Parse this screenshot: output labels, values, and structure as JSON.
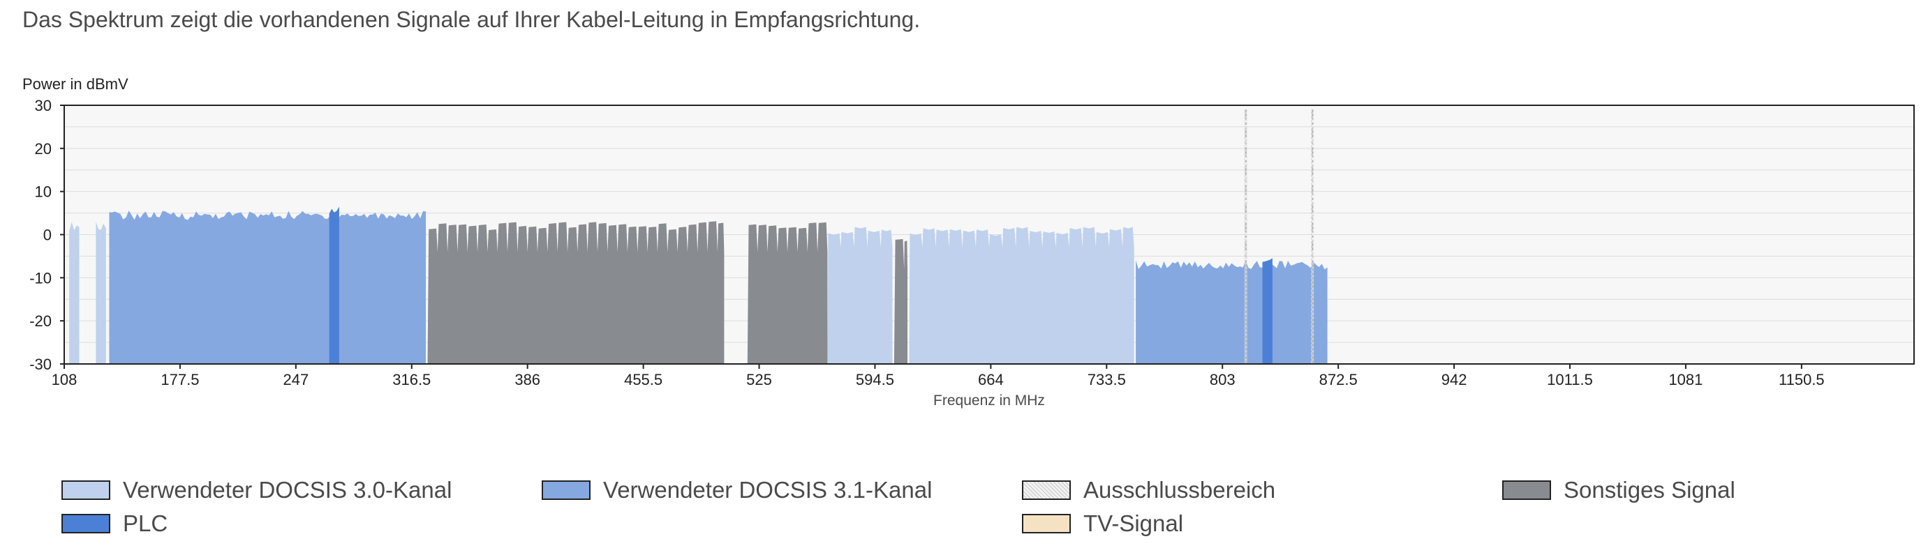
{
  "intro_text": "Das Spektrum zeigt die vorhandenen Signale auf Ihrer Kabel-Leitung in Empfangsrichtung.",
  "colors": {
    "docsis30": "#bfd1ec",
    "docsis31": "#85a8e0",
    "plc": "#4b80d6",
    "other": "#888b8f",
    "exclusion": "#eaeaea",
    "tv": "#f5e2c3",
    "plot_bg": "#f7f7f7",
    "grid": "#dcdcdc"
  },
  "chart_data": {
    "type": "area",
    "title": "",
    "ylabel": "Power in dBmV",
    "xlabel": "Frequenz in MHz",
    "xlim": [
      108,
      1218
    ],
    "ylim": [
      -30,
      30
    ],
    "x_ticks": [
      "108",
      "177.5",
      "247",
      "316.5",
      "386",
      "455.5",
      "525",
      "594.5",
      "664",
      "733.5",
      "803",
      "872.5",
      "942",
      "1011.5",
      "1081",
      "1150.5"
    ],
    "y_ticks": [
      "30",
      "20",
      "10",
      "0",
      "-10",
      "-20",
      "-30"
    ],
    "grid": true,
    "bands": [
      {
        "category": "docsis30",
        "start": 111,
        "end": 117,
        "level": 2
      },
      {
        "category": "docsis30",
        "start": 127,
        "end": 133,
        "level": 2
      },
      {
        "category": "docsis31",
        "start": 135,
        "end": 325,
        "level": 4.5
      },
      {
        "category": "plc",
        "start": 267,
        "end": 273,
        "level": 5.5
      },
      {
        "category": "other",
        "start": 326,
        "end": 504,
        "level": 2
      },
      {
        "category": "other",
        "start": 518,
        "end": 566,
        "level": 2
      },
      {
        "category": "docsis30",
        "start": 566,
        "end": 605,
        "level": 1
      },
      {
        "category": "other",
        "start": 606,
        "end": 614,
        "level": -2
      },
      {
        "category": "docsis30",
        "start": 615,
        "end": 750,
        "level": 1
      },
      {
        "category": "docsis31",
        "start": 751,
        "end": 866,
        "level": -7
      },
      {
        "category": "plc",
        "start": 827,
        "end": 833,
        "level": -6.5
      }
    ],
    "exclusion_markers": [
      817,
      857
    ],
    "legend": [
      {
        "key": "docsis30",
        "label": "Verwendeter DOCSIS 3.0-Kanal"
      },
      {
        "key": "docsis31",
        "label": "Verwendeter DOCSIS 3.1-Kanal"
      },
      {
        "key": "exclusion",
        "label": "Ausschlussbereich"
      },
      {
        "key": "other",
        "label": "Sonstiges Signal"
      },
      {
        "key": "plc",
        "label": "PLC"
      },
      {
        "key": "tv",
        "label": "TV-Signal"
      }
    ]
  }
}
